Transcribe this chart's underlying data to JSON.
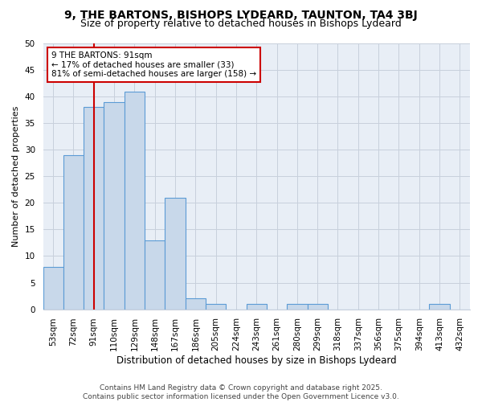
{
  "title1": "9, THE BARTONS, BISHOPS LYDEARD, TAUNTON, TA4 3BJ",
  "title2": "Size of property relative to detached houses in Bishops Lydeard",
  "xlabel": "Distribution of detached houses by size in Bishops Lydeard",
  "ylabel": "Number of detached properties",
  "categories": [
    "53sqm",
    "72sqm",
    "91sqm",
    "110sqm",
    "129sqm",
    "148sqm",
    "167sqm",
    "186sqm",
    "205sqm",
    "224sqm",
    "243sqm",
    "261sqm",
    "280sqm",
    "299sqm",
    "318sqm",
    "337sqm",
    "356sqm",
    "375sqm",
    "394sqm",
    "413sqm",
    "432sqm"
  ],
  "values": [
    8,
    29,
    38,
    39,
    41,
    13,
    21,
    2,
    1,
    0,
    1,
    0,
    1,
    1,
    0,
    0,
    0,
    0,
    0,
    1,
    0
  ],
  "bar_color": "#c8d8ea",
  "bar_edge_color": "#5b9bd5",
  "red_line_x": 2,
  "annotation_line1": "9 THE BARTONS: 91sqm",
  "annotation_line2": "← 17% of detached houses are smaller (33)",
  "annotation_line3": "81% of semi-detached houses are larger (158) →",
  "annotation_box_color": "#ffffff",
  "annotation_box_edge": "#cc0000",
  "red_line_color": "#cc0000",
  "ylim": [
    0,
    50
  ],
  "yticks": [
    0,
    5,
    10,
    15,
    20,
    25,
    30,
    35,
    40,
    45,
    50
  ],
  "grid_color": "#c8d0dc",
  "bg_color": "#e8eef6",
  "footer1": "Contains HM Land Registry data © Crown copyright and database right 2025.",
  "footer2": "Contains public sector information licensed under the Open Government Licence v3.0.",
  "title1_fontsize": 10,
  "title2_fontsize": 9,
  "xlabel_fontsize": 8.5,
  "ylabel_fontsize": 8,
  "tick_fontsize": 7.5,
  "annotation_fontsize": 7.5,
  "footer_fontsize": 6.5
}
